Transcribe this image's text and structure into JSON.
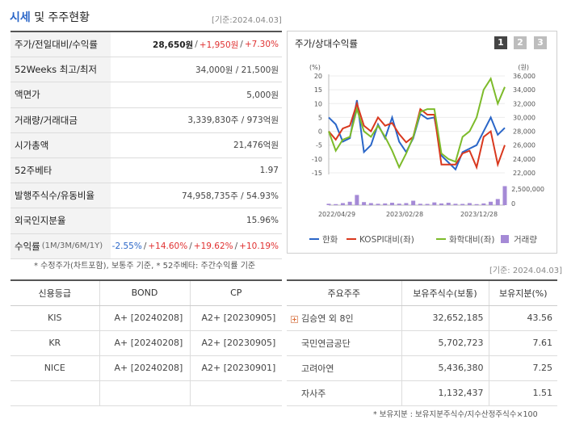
{
  "header": {
    "title_highlight": "시세",
    "title_rest": " 및 주주현황",
    "date": "[기준:2024.04.03]"
  },
  "info_rows": [
    {
      "label": "주가/전일대비/수익률"
    },
    {
      "label": "52Weeks 최고/최저",
      "value": "34,000원 / 21,500원"
    },
    {
      "label": "액면가",
      "value": "5,000원"
    },
    {
      "label": "거래량/거래대금",
      "value": "3,339,830주 / 973억원"
    },
    {
      "label": "시가총액",
      "value": "21,476억원"
    },
    {
      "label": "52주베타",
      "value": "1.97"
    },
    {
      "label": "발행주식수/유동비율",
      "value": "74,958,735주 / 54.93%"
    },
    {
      "label": "외국인지분율",
      "value": "15.96%"
    },
    {
      "label": "수익률",
      "sublabel": "(1M/3M/6M/1Y)"
    }
  ],
  "price": {
    "price": "28,650원",
    "change": "+1,950원",
    "rate": "+7.30%",
    "sep": "/"
  },
  "returns": [
    "-2.55%",
    "+14.60%",
    "+19.62%",
    "+10.19%"
  ],
  "note1": "* 수정주가(차트포함), 보통주 기준, * 52주베타: 주간수익률 기준",
  "chart": {
    "title": "주가/상대수익률",
    "tabs": [
      "1",
      "2",
      "3"
    ],
    "left_unit": "(%)",
    "right_unit": "(원)",
    "left_ticks": [
      "20",
      "15",
      "10",
      "5",
      "0",
      "-5",
      "-10",
      "-15"
    ],
    "right_ticks": [
      "36,000",
      "34,000",
      "32,000",
      "30,000",
      "28,000",
      "26,000",
      "24,000",
      "22,000"
    ],
    "vol_ticks": [
      "2,500,000",
      "0"
    ],
    "x_ticks": [
      "2022/04/29",
      "2023/02/28",
      "2023/12/28"
    ],
    "legend": [
      {
        "label": "한화",
        "color": "#2a66c8"
      },
      {
        "label": "KOSPI대비(좌)",
        "color": "#d9381e"
      },
      {
        "label": "화학대비(좌)",
        "color": "#7dbb2a"
      },
      {
        "label": "거래량",
        "color": "#a58ad6"
      }
    ]
  },
  "chart_data": {
    "type": "line",
    "x": [
      0,
      1,
      2,
      3,
      4,
      5,
      6,
      7,
      8,
      9,
      10,
      11,
      12,
      13,
      14,
      15,
      16,
      17,
      18,
      19,
      20,
      21,
      22,
      23,
      24,
      25
    ],
    "series": [
      {
        "name": "한화",
        "axis": "right",
        "values": [
          30000,
          29000,
          26500,
          27000,
          32500,
          25000,
          26000,
          29000,
          27000,
          30000,
          26500,
          25000,
          27000,
          30500,
          29800,
          30000,
          24500,
          23500,
          22500,
          25000,
          25500,
          26000,
          28000,
          30000,
          27500,
          28500
        ]
      },
      {
        "name": "KOSPI대비(좌)",
        "axis": "left",
        "values": [
          0,
          -3,
          1,
          2,
          10,
          2,
          0,
          5,
          2,
          3,
          -1,
          -4,
          -2,
          8,
          6,
          6,
          -12,
          -12,
          -12,
          -8,
          -7,
          -13,
          -2,
          0,
          -12,
          -5
        ]
      },
      {
        "name": "화학대비(좌)",
        "axis": "left",
        "values": [
          0,
          -7,
          -3,
          -2,
          8,
          0,
          -2,
          2,
          -2,
          -7,
          -13,
          -8,
          -2,
          7,
          8,
          8,
          -8,
          -10,
          -11,
          -2,
          0,
          5,
          15,
          19,
          10,
          16
        ]
      },
      {
        "name": "거래량",
        "axis": "volume",
        "type": "bar",
        "values": [
          200000,
          150000,
          300000,
          500000,
          1500000,
          450000,
          300000,
          200000,
          250000,
          350000,
          220000,
          300000,
          650000,
          200000,
          180000,
          400000,
          250000,
          350000,
          200000,
          180000,
          300000,
          150000,
          250000,
          500000,
          900000,
          2800000
        ]
      }
    ],
    "ylim_left": [
      -15,
      20
    ],
    "ylim_right": [
      22000,
      36000
    ],
    "ylim_volume": [
      0,
      2500000
    ]
  },
  "note2": "[기준: 2024.04.03]",
  "credit": {
    "headers": [
      "신용등급",
      "BOND",
      "CP"
    ],
    "rows": [
      [
        "KIS",
        "A+ [20240208]",
        "A2+ [20230905]"
      ],
      [
        "KR",
        "A+ [20240208]",
        "A2+ [20230905]"
      ],
      [
        "NICE",
        "A+ [20240208]",
        "A2+ [20230901]"
      ],
      [
        "",
        "",
        ""
      ]
    ]
  },
  "holders": {
    "headers": [
      "주요주주",
      "보유주식수(보통)",
      "보유지분(%)"
    ],
    "rows": [
      [
        "김승연 외 8인",
        "32,652,185",
        "43.56"
      ],
      [
        "국민연금공단",
        "5,702,723",
        "7.61"
      ],
      [
        "고려아연",
        "5,436,380",
        "7.25"
      ],
      [
        "자사주",
        "1,132,437",
        "1.51"
      ]
    ],
    "expand_icon": "+"
  },
  "note3": "* 보유지분 : 보유지분주식수/지수산정주식수×100"
}
